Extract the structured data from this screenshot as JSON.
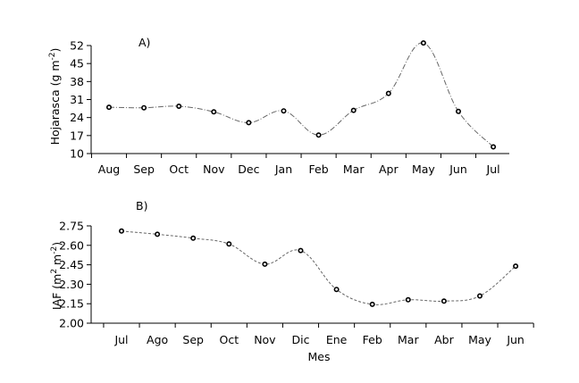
{
  "chart_data": [
    {
      "type": "line",
      "panel_label": "A)",
      "ylabel": "Hojarasca (g m",
      "ylabel_sup": "-2",
      "ylabel_end": ")",
      "xlabel": "",
      "ylim": [
        10,
        52
      ],
      "yticks": [
        10,
        17,
        24,
        31,
        38,
        45,
        52
      ],
      "categories": [
        "Aug",
        "Sep",
        "Oct",
        "Nov",
        "Dec",
        "Jan",
        "Feb",
        "Mar",
        "Apr",
        "May",
        "Jun",
        "Jul"
      ],
      "values": [
        28.0,
        27.8,
        28.4,
        26.2,
        22.0,
        26.6,
        17.2,
        26.8,
        33.4,
        53.0,
        26.4,
        12.6
      ],
      "line_style": "dashdot",
      "grid": false
    },
    {
      "type": "line",
      "panel_label": "B)",
      "ylabel": "IAF (m",
      "ylabel_sup1": "2",
      "ylabel_mid": " m",
      "ylabel_sup2": "-2",
      "ylabel_end": ")",
      "xlabel": "Mes",
      "ylim": [
        2.0,
        2.75
      ],
      "yticks": [
        "2.00",
        "2.15",
        "2.30",
        "2.45",
        "2.60",
        "2.75"
      ],
      "categories": [
        "Jul",
        "Ago",
        "Sep",
        "Oct",
        "Nov",
        "Dic",
        "Ene",
        "Feb",
        "Mar",
        "Abr",
        "May",
        "Jun"
      ],
      "values": [
        2.71,
        2.685,
        2.655,
        2.61,
        2.455,
        2.56,
        2.26,
        2.145,
        2.18,
        2.17,
        2.21,
        2.44
      ],
      "line_style": "dashed",
      "grid": false
    }
  ]
}
